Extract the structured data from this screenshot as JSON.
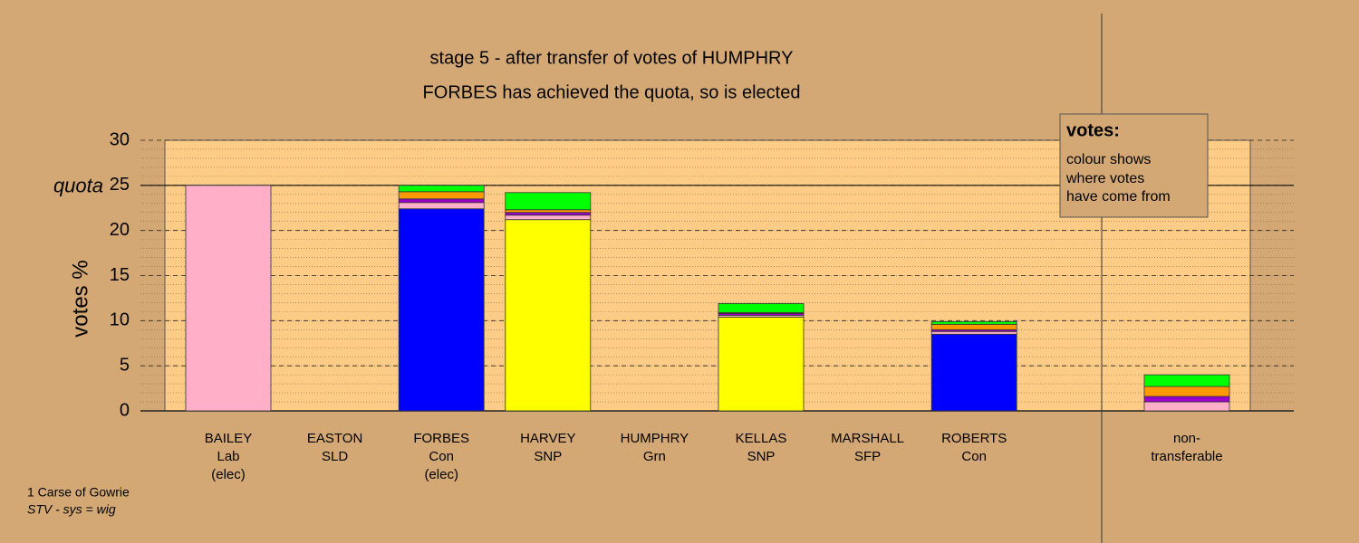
{
  "chart_data": {
    "type": "bar",
    "stacked": true,
    "title": "stage 5 - after transfer of votes of HUMPHRY",
    "subtitle": "FORBES has achieved the quota, so is elected",
    "y_label": "votes %",
    "quota": {
      "value": 25,
      "label": "quota"
    },
    "legend": {
      "title": "votes:",
      "lines": [
        "colour shows",
        "where votes",
        "have come from"
      ]
    },
    "footer": [
      "1 Carse of Gowrie",
      "STV - sys = wig"
    ],
    "categories": [
      [
        "BAILEY",
        "Lab",
        "(elec)"
      ],
      [
        "EASTON",
        "SLD"
      ],
      [
        "FORBES",
        "Con",
        "(elec)"
      ],
      [
        "HARVEY",
        "SNP"
      ],
      [
        "HUMPHRY",
        "Grn"
      ],
      [
        "KELLAS",
        "SNP"
      ],
      [
        "MARSHALL",
        "SFP"
      ],
      [
        "ROBERTS",
        "Con"
      ],
      [
        "non-",
        "transferable"
      ]
    ],
    "series": [
      {
        "color": "#0000ff",
        "values": [
          null,
          null,
          22.4,
          null,
          null,
          null,
          null,
          8.5,
          null
        ]
      },
      {
        "color": "#ffff00",
        "values": [
          null,
          null,
          null,
          21.2,
          null,
          10.4,
          null,
          null,
          null
        ]
      },
      {
        "color": "#ffb0c8",
        "values": [
          25,
          null,
          0.7,
          0.5,
          null,
          0.2,
          null,
          0.3,
          1.0
        ]
      },
      {
        "color": "#9900cc",
        "values": [
          null,
          null,
          0.4,
          0.3,
          null,
          0.2,
          null,
          0.2,
          0.6
        ]
      },
      {
        "color": "#ff9900",
        "values": [
          null,
          null,
          0.8,
          0.3,
          null,
          0.1,
          null,
          0.6,
          1.1
        ]
      },
      {
        "color": "#00ff00",
        "values": [
          null,
          null,
          0.7,
          1.9,
          null,
          1.0,
          null,
          0.3,
          1.3
        ]
      }
    ],
    "ylim": [
      0,
      30
    ],
    "yticks": [
      0,
      5,
      10,
      15,
      20,
      25,
      30
    ],
    "minor_grid_step": 1,
    "grid": true
  }
}
